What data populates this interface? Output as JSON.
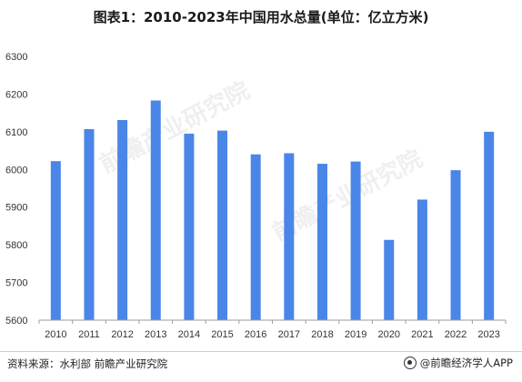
{
  "title": "图表1：2010-2023年中国用水总量(单位：亿立方米)",
  "source": "资料来源：水利部 前瞻产业研究院",
  "brand": "@前瞻经济学人APP",
  "watermark": "前瞻产业研究院",
  "colors": {
    "bar": "#4a86e8",
    "axis": "#9e9e9e",
    "text": "#333333"
  },
  "chart_data": {
    "type": "bar",
    "categories": [
      "2010",
      "2011",
      "2012",
      "2013",
      "2014",
      "2015",
      "2016",
      "2017",
      "2018",
      "2019",
      "2020",
      "2021",
      "2022",
      "2023"
    ],
    "values": [
      6022,
      6107,
      6131,
      6183,
      6095,
      6103,
      6040,
      6043,
      6015,
      6021,
      5813,
      5920,
      5998,
      6100
    ],
    "ylim": [
      5600,
      6300
    ],
    "yticks": [
      5600,
      5700,
      5800,
      5900,
      6000,
      6100,
      6200,
      6300
    ],
    "grid": false,
    "title": "图表1：2010-2023年中国用水总量(单位：亿立方米)"
  }
}
